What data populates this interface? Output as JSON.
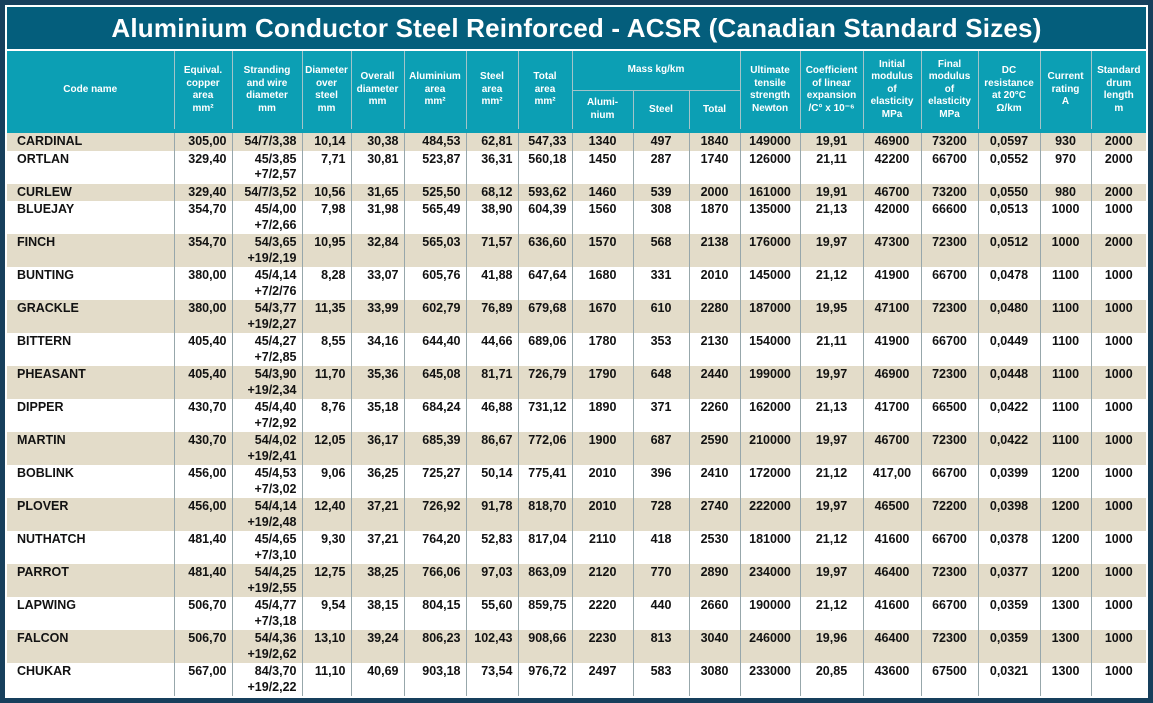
{
  "title": "Aluminium Conductor Steel Reinforced - ACSR (Canadian Standard Sizes)",
  "colors": {
    "frame": "#173f5c",
    "title_bg": "#045e7c",
    "header_bg": "#0c9fb4",
    "header_line": "#a3c4c9",
    "row_beige": "#e3dcc9",
    "row_white": "#ffffff",
    "grid": "#97a7ab",
    "text": "#121212"
  },
  "table": {
    "header": [
      {
        "id": "code_name",
        "label": "Code name"
      },
      {
        "id": "equiv_copper_area",
        "label": "Equival.\ncopper\narea\nmm²"
      },
      {
        "id": "stranding",
        "label": "Stranding\nand wire\ndiameter\nmm"
      },
      {
        "id": "diameter_over_steel",
        "label": "Diameter\nover\nsteel\nmm"
      },
      {
        "id": "overall_diameter",
        "label": "Overall\ndiameter\nmm"
      },
      {
        "id": "aluminium_area",
        "label": "Aluminium\narea\nmm²"
      },
      {
        "id": "steel_area",
        "label": "Steel\narea\nmm²"
      },
      {
        "id": "total_area",
        "label": "Total\narea\nmm²"
      },
      {
        "id": "mass",
        "label": "Mass kg/km",
        "children": [
          {
            "id": "mass_aluminium",
            "label": "Alumi-\nnium"
          },
          {
            "id": "mass_steel",
            "label": "Steel"
          },
          {
            "id": "mass_total",
            "label": "Total"
          }
        ]
      },
      {
        "id": "ultimate_tensile_strength",
        "label": "Ultimate\ntensile\nstrength\nNewton"
      },
      {
        "id": "coefficient_linear_expansion",
        "label": "Coefficient\nof linear\nexpansion\n/C° x 10⁻⁶"
      },
      {
        "id": "initial_modulus",
        "label": "Initial\nmodulus\nof\nelasticity\nMPa"
      },
      {
        "id": "final_modulus",
        "label": "Final\nmodulus\nof\nelasticity\nMPa"
      },
      {
        "id": "dc_resistance",
        "label": "DC\nresistance\nat 20°C\nΩ/km"
      },
      {
        "id": "current_rating",
        "label": "Current\nrating\nA"
      },
      {
        "id": "standard_drum_length",
        "label": "Standard\ndrum\nlength\nm"
      }
    ],
    "rows": [
      [
        "CARDINAL",
        "305,00",
        "54/7/3,38",
        "10,14",
        "30,38",
        "484,53",
        "62,81",
        "547,33",
        "1340",
        "497",
        "1840",
        "149000",
        "19,91",
        "46900",
        "73200",
        "0,0597",
        "930",
        "2000"
      ],
      [
        "ORTLAN",
        "329,40",
        "45/3,85\n+7/2,57",
        "7,71",
        "30,81",
        "523,87",
        "36,31",
        "560,18",
        "1450",
        "287",
        "1740",
        "126000",
        "21,11",
        "42200",
        "66700",
        "0,0552",
        "970",
        "2000"
      ],
      [
        "CURLEW",
        "329,40",
        "54/7/3,52",
        "10,56",
        "31,65",
        "525,50",
        "68,12",
        "593,62",
        "1460",
        "539",
        "2000",
        "161000",
        "19,91",
        "46700",
        "73200",
        "0,0550",
        "980",
        "2000"
      ],
      [
        "BLUEJAY",
        "354,70",
        "45/4,00\n+7/2,66",
        "7,98",
        "31,98",
        "565,49",
        "38,90",
        "604,39",
        "1560",
        "308",
        "1870",
        "135000",
        "21,13",
        "42000",
        "66600",
        "0,0513",
        "1000",
        "1000"
      ],
      [
        "FINCH",
        "354,70",
        "54/3,65\n+19/2,19",
        "10,95",
        "32,84",
        "565,03",
        "71,57",
        "636,60",
        "1570",
        "568",
        "2138",
        "176000",
        "19,97",
        "47300",
        "72300",
        "0,0512",
        "1000",
        "2000"
      ],
      [
        "BUNTING",
        "380,00",
        "45/4,14\n+7/2/76",
        "8,28",
        "33,07",
        "605,76",
        "41,88",
        "647,64",
        "1680",
        "331",
        "2010",
        "145000",
        "21,12",
        "41900",
        "66700",
        "0,0478",
        "1100",
        "1000"
      ],
      [
        "GRACKLE",
        "380,00",
        "54/3,77\n+19/2,27",
        "11,35",
        "33,99",
        "602,79",
        "76,89",
        "679,68",
        "1670",
        "610",
        "2280",
        "187000",
        "19,95",
        "47100",
        "72300",
        "0,0480",
        "1100",
        "1000"
      ],
      [
        "BITTERN",
        "405,40",
        "45/4,27\n+7/2,85",
        "8,55",
        "34,16",
        "644,40",
        "44,66",
        "689,06",
        "1780",
        "353",
        "2130",
        "154000",
        "21,11",
        "41900",
        "66700",
        "0,0449",
        "1100",
        "1000"
      ],
      [
        "PHEASANT",
        "405,40",
        "54/3,90\n+19/2,34",
        "11,70",
        "35,36",
        "645,08",
        "81,71",
        "726,79",
        "1790",
        "648",
        "2440",
        "199000",
        "19,97",
        "46900",
        "72300",
        "0,0448",
        "1100",
        "1000"
      ],
      [
        "DIPPER",
        "430,70",
        "45/4,40\n+7/2,92",
        "8,76",
        "35,18",
        "684,24",
        "46,88",
        "731,12",
        "1890",
        "371",
        "2260",
        "162000",
        "21,13",
        "41700",
        "66500",
        "0,0422",
        "1100",
        "1000"
      ],
      [
        "MARTIN",
        "430,70",
        "54/4,02\n+19/2,41",
        "12,05",
        "36,17",
        "685,39",
        "86,67",
        "772,06",
        "1900",
        "687",
        "2590",
        "210000",
        "19,97",
        "46700",
        "72300",
        "0,0422",
        "1100",
        "1000"
      ],
      [
        "BOBLINK",
        "456,00",
        "45/4,53\n+7/3,02",
        "9,06",
        "36,25",
        "725,27",
        "50,14",
        "775,41",
        "2010",
        "396",
        "2410",
        "172000",
        "21,12",
        "417,00",
        "66700",
        "0,0399",
        "1200",
        "1000"
      ],
      [
        "PLOVER",
        "456,00",
        "54/4,14\n+19/2,48",
        "12,40",
        "37,21",
        "726,92",
        "91,78",
        "818,70",
        "2010",
        "728",
        "2740",
        "222000",
        "19,97",
        "46500",
        "72200",
        "0,0398",
        "1200",
        "1000"
      ],
      [
        "NUTHATCH",
        "481,40",
        "45/4,65\n+7/3,10",
        "9,30",
        "37,21",
        "764,20",
        "52,83",
        "817,04",
        "2110",
        "418",
        "2530",
        "181000",
        "21,12",
        "41600",
        "66700",
        "0,0378",
        "1200",
        "1000"
      ],
      [
        "PARROT",
        "481,40",
        "54/4,25\n+19/2,55",
        "12,75",
        "38,25",
        "766,06",
        "97,03",
        "863,09",
        "2120",
        "770",
        "2890",
        "234000",
        "19,97",
        "46400",
        "72300",
        "0,0377",
        "1200",
        "1000"
      ],
      [
        "LAPWING",
        "506,70",
        "45/4,77\n+7/3,18",
        "9,54",
        "38,15",
        "804,15",
        "55,60",
        "859,75",
        "2220",
        "440",
        "2660",
        "190000",
        "21,12",
        "41600",
        "66700",
        "0,0359",
        "1300",
        "1000"
      ],
      [
        "FALCON",
        "506,70",
        "54/4,36\n+19/2,62",
        "13,10",
        "39,24",
        "806,23",
        "102,43",
        "908,66",
        "2230",
        "813",
        "3040",
        "246000",
        "19,96",
        "46400",
        "72300",
        "0,0359",
        "1300",
        "1000"
      ],
      [
        "CHUKAR",
        "567,00",
        "84/3,70\n+19/2,22",
        "11,10",
        "40,69",
        "903,18",
        "73,54",
        "976,72",
        "2497",
        "583",
        "3080",
        "233000",
        "20,85",
        "43600",
        "67500",
        "0,0321",
        "1300",
        "1000"
      ]
    ]
  }
}
